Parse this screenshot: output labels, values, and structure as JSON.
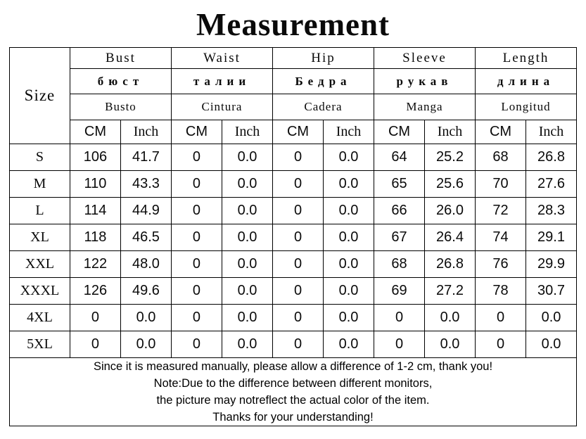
{
  "chart_data": {
    "type": "table",
    "title": "Measurement",
    "size_label": "Size",
    "units": {
      "cm": "CM",
      "inch": "Inch"
    },
    "groups": [
      {
        "en": "Bust",
        "ru": "бюст",
        "es": "Busto"
      },
      {
        "en": "Waist",
        "ru": "талии",
        "es": "Cintura"
      },
      {
        "en": "Hip",
        "ru": "Бедра",
        "es": "Cadera"
      },
      {
        "en": "Sleeve",
        "ru": "рукав",
        "es": "Manga"
      },
      {
        "en": "Length",
        "ru": "длина",
        "es": "Longitud"
      }
    ],
    "rows": [
      {
        "size": "S",
        "cm": [
          "106",
          "0",
          "0",
          "64",
          "68"
        ],
        "inch": [
          "41.7",
          "0.0",
          "0.0",
          "25.2",
          "26.8"
        ]
      },
      {
        "size": "M",
        "cm": [
          "110",
          "0",
          "0",
          "65",
          "70"
        ],
        "inch": [
          "43.3",
          "0.0",
          "0.0",
          "25.6",
          "27.6"
        ]
      },
      {
        "size": "L",
        "cm": [
          "114",
          "0",
          "0",
          "66",
          "72"
        ],
        "inch": [
          "44.9",
          "0.0",
          "0.0",
          "26.0",
          "28.3"
        ]
      },
      {
        "size": "XL",
        "cm": [
          "118",
          "0",
          "0",
          "67",
          "74"
        ],
        "inch": [
          "46.5",
          "0.0",
          "0.0",
          "26.4",
          "29.1"
        ]
      },
      {
        "size": "XXL",
        "cm": [
          "122",
          "0",
          "0",
          "68",
          "76"
        ],
        "inch": [
          "48.0",
          "0.0",
          "0.0",
          "26.8",
          "29.9"
        ]
      },
      {
        "size": "XXXL",
        "cm": [
          "126",
          "0",
          "0",
          "69",
          "78"
        ],
        "inch": [
          "49.6",
          "0.0",
          "0.0",
          "27.2",
          "30.7"
        ]
      },
      {
        "size": "4XL",
        "cm": [
          "0",
          "0",
          "0",
          "0",
          "0"
        ],
        "inch": [
          "0.0",
          "0.0",
          "0.0",
          "0.0",
          "0.0"
        ]
      },
      {
        "size": "5XL",
        "cm": [
          "0",
          "0",
          "0",
          "0",
          "0"
        ],
        "inch": [
          "0.0",
          "0.0",
          "0.0",
          "0.0",
          "0.0"
        ]
      }
    ],
    "notes": [
      "Since it is measured manually, please allow a difference of 1-2 cm, thank you!",
      "Note:Due to the difference between different monitors,",
      "the picture may notreflect the actual color of the item.",
      "Thanks for your understanding!"
    ]
  },
  "colors": {
    "accent_red": "#e60000",
    "text": "#000000",
    "border": "#000000",
    "background": "#ffffff"
  }
}
